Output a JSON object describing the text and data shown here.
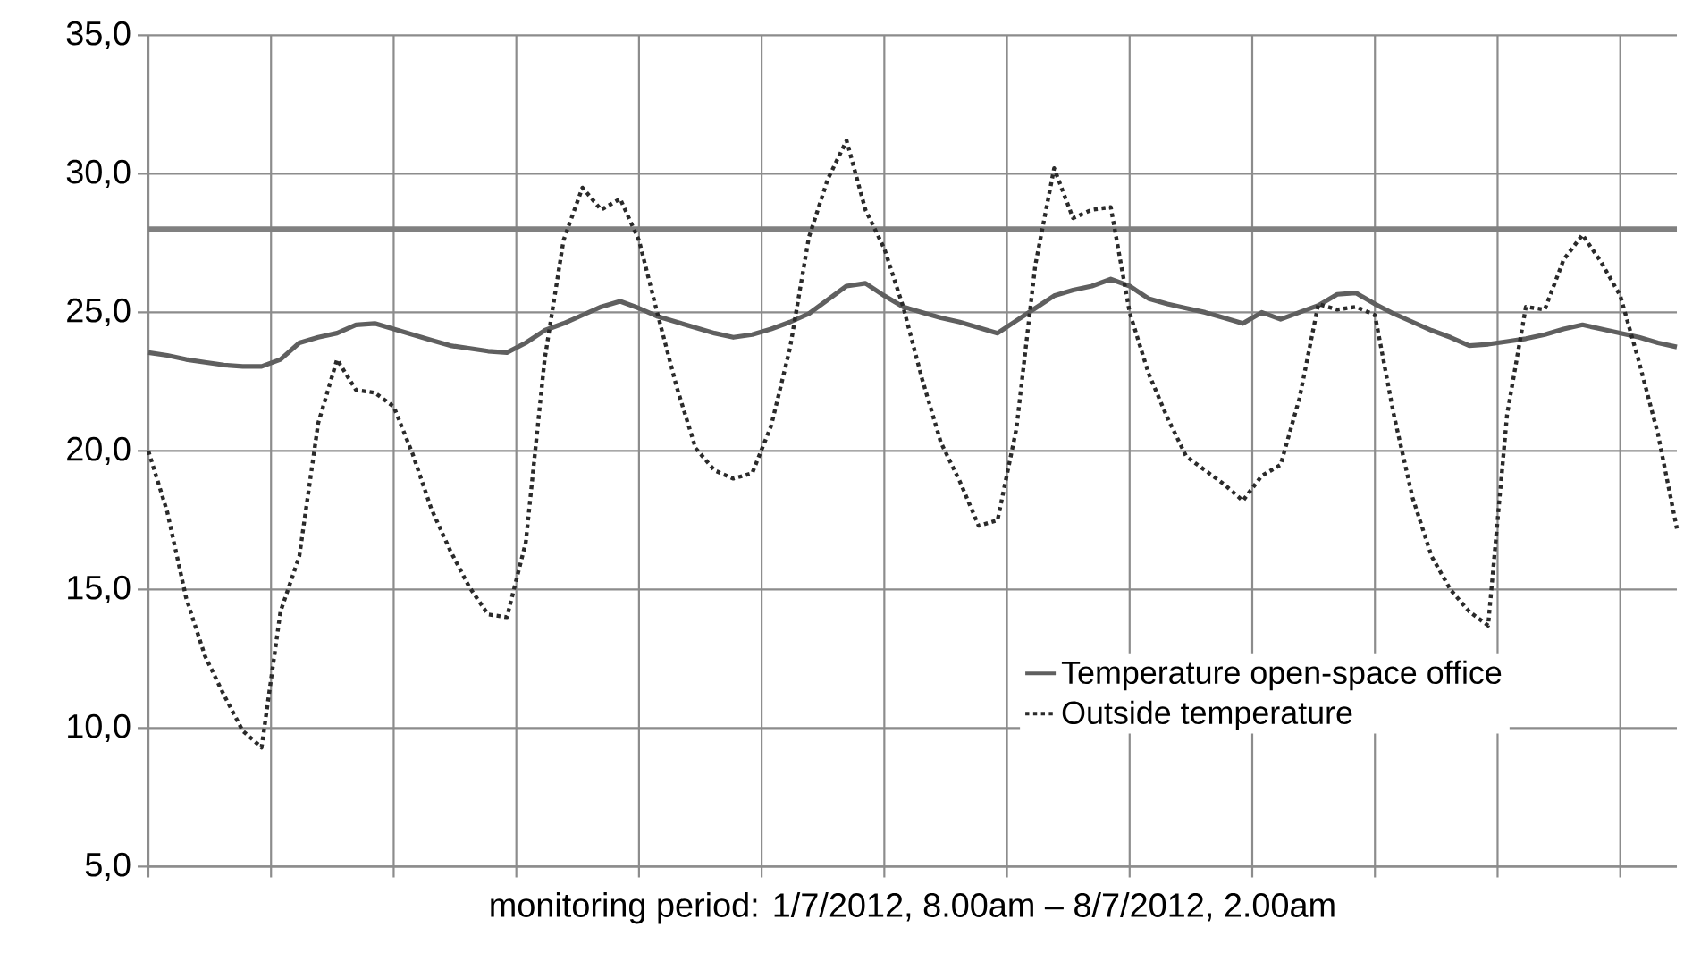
{
  "chart_data": {
    "type": "line",
    "xlabel": "monitoring period: 1/7/2012, 8.00am – 8/7/2012, 2.00am",
    "categories": [
      null,
      null,
      null,
      null,
      null,
      null,
      null,
      null,
      null,
      null,
      null,
      null,
      null,
      null,
      null,
      null,
      null,
      null,
      null,
      null,
      null,
      null,
      null,
      null,
      null,
      null,
      null,
      null,
      null,
      null,
      null,
      null,
      null,
      null,
      null,
      null,
      null,
      null,
      null,
      null,
      null,
      null,
      null,
      null,
      null,
      null,
      null,
      null,
      null,
      null,
      null,
      null,
      null,
      null,
      null,
      null,
      null,
      null,
      null,
      null,
      null,
      null,
      null,
      null,
      null,
      null,
      null,
      null,
      null,
      null,
      null,
      null,
      null,
      null,
      null,
      null,
      null,
      null,
      null,
      null,
      null,
      null
    ],
    "ylim": [
      5,
      35
    ],
    "yticks": [
      {
        "value": 5,
        "label": "5,0"
      },
      {
        "value": 10,
        "label": "10,0"
      },
      {
        "value": 15,
        "label": "15,0"
      },
      {
        "value": 20,
        "label": "20,0"
      },
      {
        "value": 25,
        "label": "25,0"
      },
      {
        "value": 30,
        "label": "30,0"
      },
      {
        "value": 35,
        "label": "35,0"
      }
    ],
    "grid": true,
    "legend": "bottom right",
    "marker": "none",
    "ref_lines": [
      {
        "axis": "y",
        "value": 28,
        "color": "#808080"
      }
    ],
    "series": [
      {
        "name": "Temperature open-space office",
        "color": "#5f5f5f",
        "line_style": "solid",
        "values": [
          23.55,
          23.45,
          23.3,
          23.2,
          23.1,
          23.05,
          23.05,
          23.3,
          23.9,
          24.1,
          24.25,
          24.55,
          24.6,
          24.4,
          24.2,
          24.0,
          23.8,
          23.7,
          23.6,
          23.55,
          23.9,
          24.35,
          24.6,
          24.9,
          25.2,
          25.4,
          25.15,
          24.85,
          24.65,
          24.45,
          24.25,
          24.1,
          24.2,
          24.4,
          24.65,
          24.95,
          25.45,
          25.95,
          26.05,
          25.6,
          25.2,
          25.0,
          24.8,
          24.65,
          24.45,
          24.25,
          24.7,
          25.15,
          25.6,
          25.8,
          25.95,
          26.2,
          25.95,
          25.5,
          25.3,
          25.15,
          25.0,
          24.8,
          24.6,
          25.0,
          24.75,
          25.0,
          25.25,
          25.65,
          25.7,
          25.3,
          24.95,
          24.65,
          24.35,
          24.1,
          23.8,
          23.85,
          23.95,
          24.05,
          24.2,
          24.4,
          24.55,
          24.4,
          24.25,
          24.1,
          23.9,
          23.75
        ]
      },
      {
        "name": "Outside temperature",
        "color": "#2a2a2a",
        "line_style": "dotted",
        "values": [
          20.0,
          17.8,
          14.7,
          12.6,
          11.2,
          9.9,
          9.3,
          14.2,
          16.2,
          21.0,
          23.3,
          22.2,
          22.1,
          21.6,
          19.9,
          17.9,
          16.4,
          15.1,
          14.1,
          14.0,
          16.7,
          23.3,
          27.6,
          29.5,
          28.7,
          29.1,
          27.6,
          24.9,
          22.3,
          20.1,
          19.3,
          19.0,
          19.2,
          20.9,
          23.7,
          27.7,
          29.8,
          31.2,
          28.7,
          27.3,
          25.2,
          22.6,
          20.3,
          18.9,
          17.3,
          17.5,
          20.8,
          26.7,
          30.2,
          28.4,
          28.7,
          28.8,
          25.0,
          22.8,
          21.2,
          19.8,
          19.3,
          18.8,
          18.2,
          19.1,
          19.5,
          21.9,
          25.3,
          25.1,
          25.2,
          24.9,
          21.3,
          18.3,
          16.2,
          15.0,
          14.2,
          13.7,
          21.3,
          25.2,
          25.1,
          26.9,
          27.8,
          26.8,
          25.6,
          23.2,
          20.6,
          17.2
        ]
      }
    ]
  }
}
